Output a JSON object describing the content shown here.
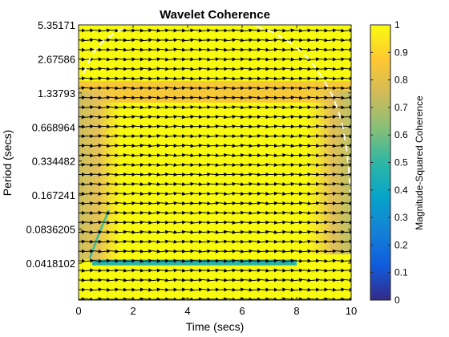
{
  "chart_data": {
    "type": "heatmap",
    "title": "Wavelet Coherence",
    "xlabel": "Time (secs)",
    "ylabel": "Period (secs)",
    "xlim": [
      0,
      10
    ],
    "x_ticks": [
      "0",
      "2",
      "4",
      "6",
      "8",
      "10"
    ],
    "y_scale": "log",
    "y_ticks": [
      "5.35171",
      "2.67586",
      "1.33793",
      "0.668964",
      "0.334482",
      "0.167241",
      "0.0836205",
      "0.0418102"
    ],
    "colorbar": {
      "label": "Magnitude-Squared Coherence",
      "range": [
        0,
        1
      ],
      "ticks": [
        "0",
        "0.1",
        "0.2",
        "0.3",
        "0.4",
        "0.5",
        "0.6",
        "0.7",
        "0.8",
        "0.9",
        "1"
      ],
      "colormap": "parula",
      "colors": [
        "#352a87",
        "#0f5cdd",
        "#1481d6",
        "#06a4ca",
        "#2eb7a4",
        "#87bf77",
        "#d1bb59",
        "#fec832",
        "#f9fb0e"
      ]
    },
    "coherence_regions": [
      {
        "description": "background coherence",
        "value": 1.0
      },
      {
        "period_range": [
          1.1,
          1.7
        ],
        "time_range": [
          0,
          10
        ],
        "value": 0.85
      },
      {
        "period_range": [
          0.045,
          1.4
        ],
        "time_range": [
          0,
          1.5
        ],
        "value": 0.75
      },
      {
        "period_range": [
          0.05,
          1.4
        ],
        "time_range": [
          8.4,
          10
        ],
        "value": 0.78
      },
      {
        "period_range": [
          0.04,
          0.045
        ],
        "time_range": [
          0.5,
          8
        ],
        "value": 0.45
      }
    ],
    "arrows": "phase arrows pointing right (in-phase)",
    "cone_of_influence": "white dashed line"
  }
}
